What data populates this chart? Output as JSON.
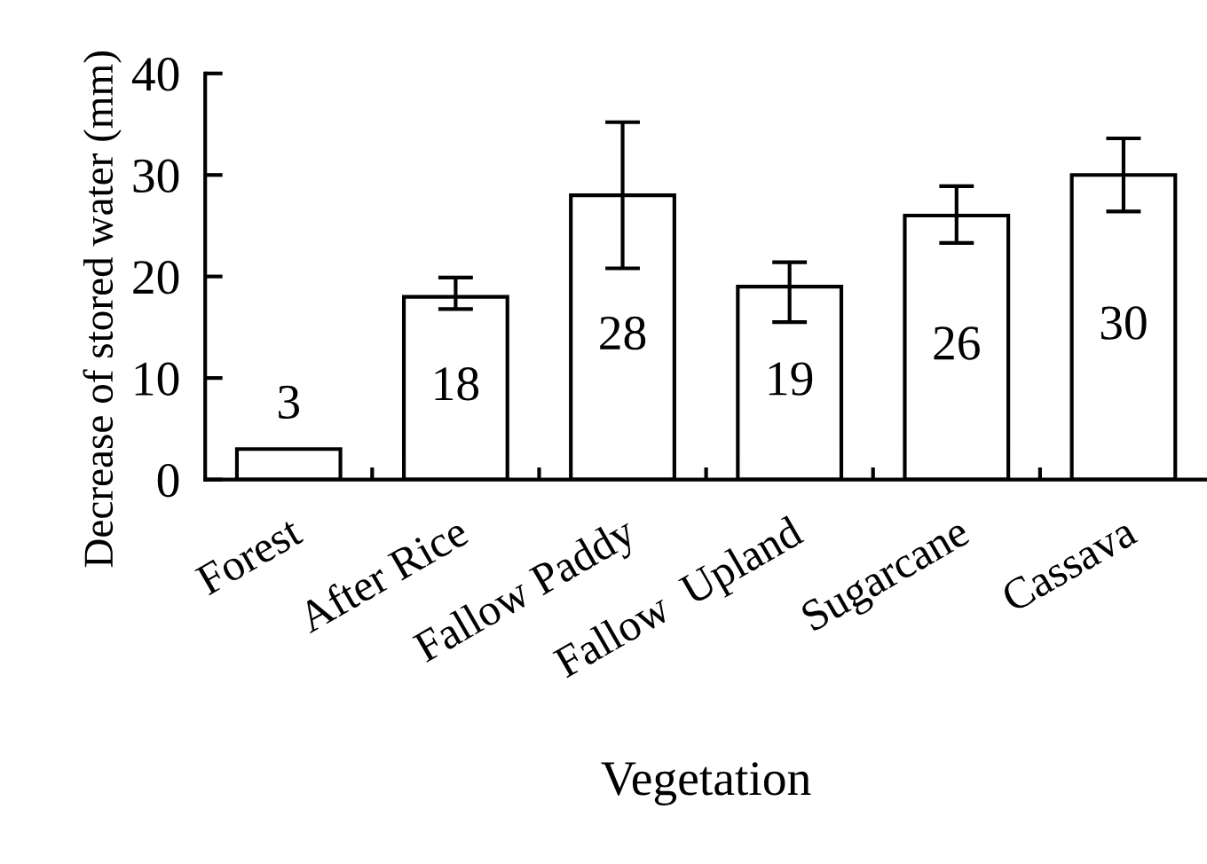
{
  "chart_data": {
    "type": "bar",
    "xlabel": "Vegetation",
    "ylabel": "Decrease of stored water (mm)",
    "categories": [
      "Forest",
      "After Rice",
      "Fallow Paddy",
      "Fallow  Upland",
      "Sugarcane",
      "Cassava"
    ],
    "values": [
      3,
      18,
      28,
      19,
      26,
      30
    ],
    "errors": [
      null,
      [
        16.8,
        19.9
      ],
      [
        20.8,
        35.2
      ],
      [
        15.5,
        21.4
      ],
      [
        23.3,
        28.9
      ],
      [
        26.4,
        33.6
      ]
    ],
    "color": "#ffffff",
    "data_labels": true,
    "ylim": [
      0,
      40
    ],
    "yticks": [
      0,
      10,
      20,
      30,
      40
    ],
    "grid": false,
    "legend": false
  }
}
